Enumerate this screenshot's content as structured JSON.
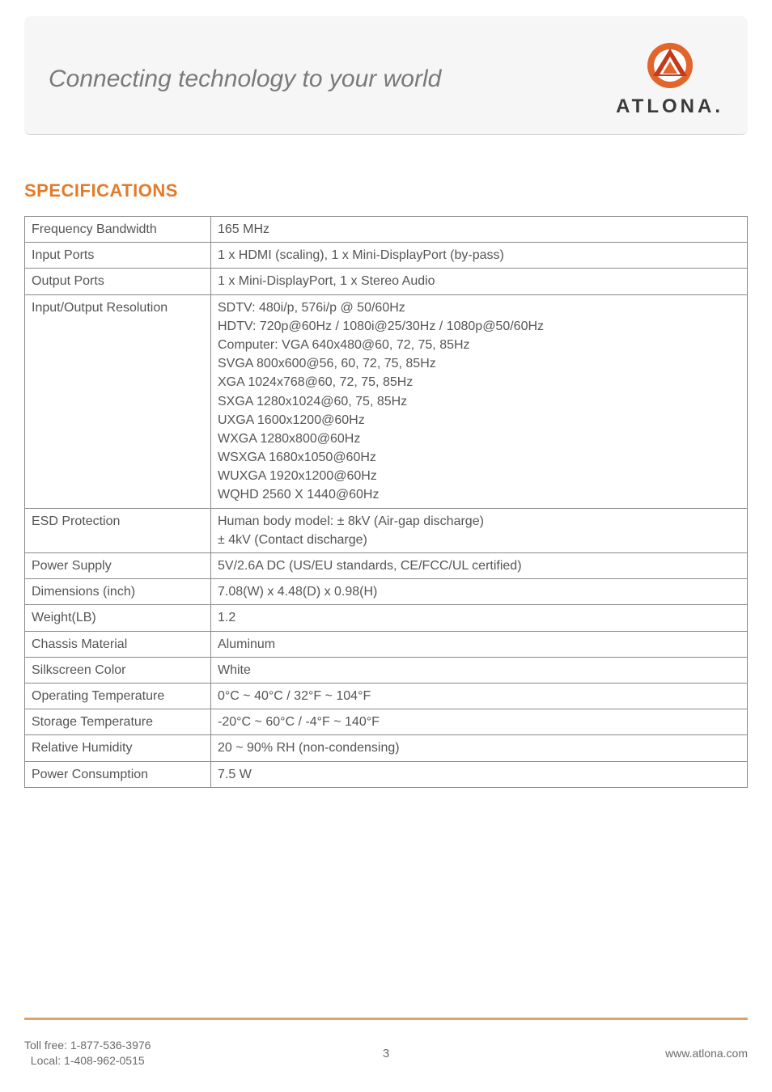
{
  "header": {
    "tagline": "Connecting technology to your world",
    "brand": "ATLONA.",
    "logo_colors": {
      "outer": "#e2652b",
      "mid": "#ffffff",
      "inner": "#c33a1a"
    }
  },
  "section_title": "SPECIFICATIONS",
  "colors": {
    "heading": "#e37b2a",
    "border": "#8a8a8a",
    "text": "#555555",
    "tagline": "#7a7a7a",
    "footer_rule": "#dfa26a",
    "header_bg": "#f6f6f6"
  },
  "spec_rows": [
    {
      "label": "Frequency Bandwidth",
      "value": "165 MHz"
    },
    {
      "label": "Input Ports",
      "value": "1 x HDMI (scaling), 1 x Mini-DisplayPort (by-pass)"
    },
    {
      "label": "Output Ports",
      "value": "1 x Mini-DisplayPort, 1 x Stereo Audio"
    },
    {
      "label": "Input/Output Resolution",
      "value": "SDTV: 480i/p, 576i/p @ 50/60Hz\nHDTV: 720p@60Hz / 1080i@25/30Hz / 1080p@50/60Hz\nComputer: VGA 640x480@60, 72, 75, 85Hz\nSVGA 800x600@56, 60, 72, 75, 85Hz\nXGA 1024x768@60, 72, 75, 85Hz\nSXGA 1280x1024@60, 75, 85Hz\nUXGA 1600x1200@60Hz\nWXGA 1280x800@60Hz\nWSXGA 1680x1050@60Hz\nWUXGA 1920x1200@60Hz\nWQHD 2560 X 1440@60Hz"
    },
    {
      "label": "ESD Protection",
      "value": "Human body model: ± 8kV (Air-gap discharge)\n                                    ± 4kV (Contact discharge)"
    },
    {
      "label": "Power Supply",
      "value": "5V/2.6A DC (US/EU standards, CE/FCC/UL certified)"
    },
    {
      "label": "Dimensions (inch)",
      "value": "7.08(W) x 4.48(D) x 0.98(H)"
    },
    {
      "label": "Weight(LB)",
      "value": "1.2"
    },
    {
      "label": "Chassis Material",
      "value": "Aluminum"
    },
    {
      "label": "Silkscreen Color",
      "value": "White"
    },
    {
      "label": "Operating Temperature",
      "value": "0°C ~ 40°C / 32°F ~ 104°F"
    },
    {
      "label": "Storage Temperature",
      "value": "-20°C ~ 60°C / -4°F ~ 140°F"
    },
    {
      "label": "Relative Humidity",
      "value": "20 ~ 90% RH (non-condensing)"
    },
    {
      "label": "Power Consumption",
      "value": "7.5 W"
    }
  ],
  "footer": {
    "toll_free_label": "Toll free:",
    "toll_free": "1-877-536-3976",
    "local_label": "Local:",
    "local": "1-408-962-0515",
    "page_number": "3",
    "url": "www.atlona.com"
  }
}
